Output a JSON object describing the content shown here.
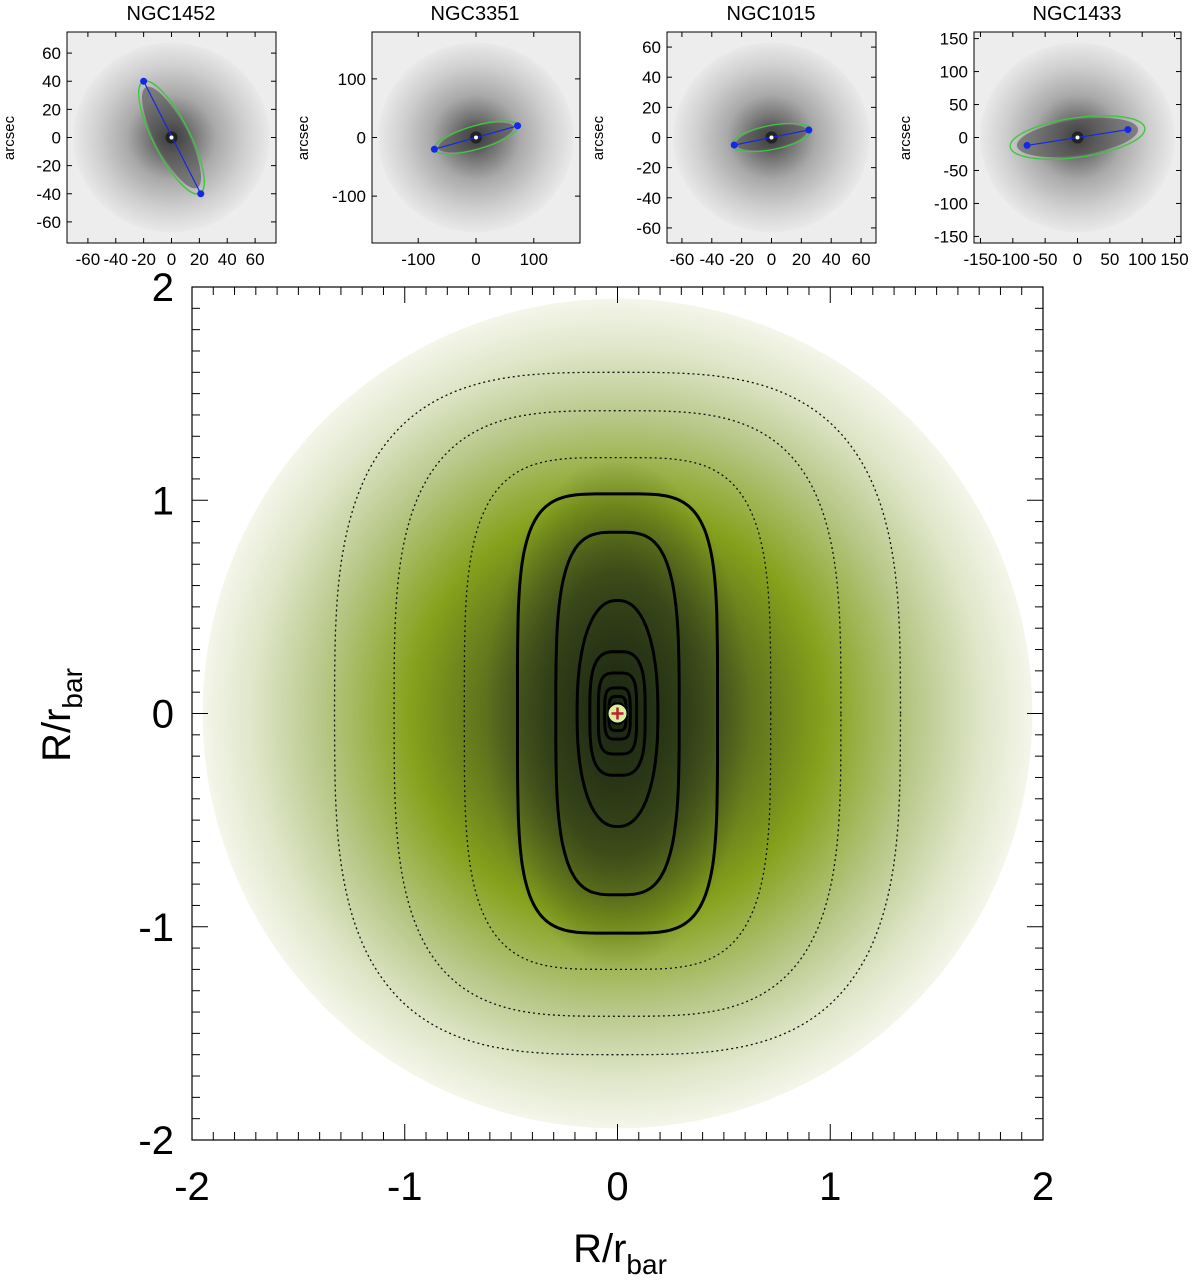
{
  "chart_data": [
    {
      "type": "heatmap",
      "panel": "top-1",
      "title": "NGC1452",
      "ylabel": "arcsec",
      "xlim": [
        -75,
        75
      ],
      "ylim": [
        -75,
        75
      ],
      "xticks": [
        -60,
        -40,
        -20,
        0,
        20,
        40,
        60
      ],
      "xtick_labels": [
        "-60",
        "-40",
        "-20",
        "0",
        "20",
        "40",
        "60"
      ],
      "yticks": [
        -60,
        -40,
        -20,
        0,
        20,
        40,
        60
      ],
      "ytick_labels": [
        "-60",
        "-40",
        "-20",
        "0",
        "20",
        "40",
        "60"
      ],
      "bar_endpoints": [
        [
          -20,
          40
        ],
        [
          21,
          -40
        ]
      ],
      "ellipse": {
        "cx": 0,
        "cy": 0,
        "semi_major": 45,
        "semi_minor": 13,
        "angle_deg": 63
      },
      "colors": {
        "bar": "#1428e6",
        "ellipse": "#3cc83c"
      }
    },
    {
      "type": "heatmap",
      "panel": "top-2",
      "title": "NGC3351",
      "ylabel": "arcsec",
      "xlim": [
        -180,
        180
      ],
      "ylim": [
        -180,
        180
      ],
      "xticks": [
        -100,
        0,
        100
      ],
      "xtick_labels": [
        "-100",
        "0",
        "100"
      ],
      "yticks": [
        -100,
        0,
        100
      ],
      "ytick_labels": [
        "-100",
        "0",
        "100"
      ],
      "bar_endpoints": [
        [
          -72,
          -20
        ],
        [
          72,
          20
        ]
      ],
      "ellipse": {
        "cx": 0,
        "cy": 0,
        "semi_major": 75,
        "semi_minor": 20,
        "angle_deg": -16
      },
      "colors": {
        "bar": "#1428e6",
        "ellipse": "#3cc83c"
      }
    },
    {
      "type": "heatmap",
      "panel": "top-3",
      "title": "NGC1015",
      "ylabel": "arcsec",
      "xlim": [
        -70,
        70
      ],
      "ylim": [
        -70,
        70
      ],
      "xticks": [
        -60,
        -40,
        -20,
        0,
        20,
        40,
        60
      ],
      "xtick_labels": [
        "-60",
        "-40",
        "-20",
        "0",
        "20",
        "40",
        "60"
      ],
      "yticks": [
        -60,
        -40,
        -20,
        0,
        20,
        40,
        60
      ],
      "ytick_labels": [
        "-60",
        "-40",
        "-20",
        "0",
        "20",
        "40",
        "60"
      ],
      "bar_endpoints": [
        [
          -25,
          -5
        ],
        [
          25,
          5
        ]
      ],
      "ellipse": {
        "cx": 0,
        "cy": 0,
        "semi_major": 27,
        "semi_minor": 8,
        "angle_deg": -11
      },
      "colors": {
        "bar": "#1428e6",
        "ellipse": "#3cc83c"
      }
    },
    {
      "type": "heatmap",
      "panel": "top-4",
      "title": "NGC1433",
      "ylabel": "arcsec",
      "xlim": [
        -160,
        160
      ],
      "ylim": [
        -160,
        160
      ],
      "xticks": [
        -150,
        -100,
        -50,
        0,
        50,
        100,
        150
      ],
      "xtick_labels": [
        "-150",
        "-100",
        "-50",
        "0",
        "50",
        "100",
        "150"
      ],
      "yticks": [
        -150,
        -100,
        -50,
        0,
        50,
        100,
        150
      ],
      "ytick_labels": [
        "-150",
        "-100",
        "-50",
        "0",
        "50",
        "100",
        "150"
      ],
      "bar_endpoints": [
        [
          -78,
          -12
        ],
        [
          78,
          12
        ]
      ],
      "ellipse": {
        "cx": 0,
        "cy": 0,
        "semi_major": 105,
        "semi_minor": 30,
        "angle_deg": -8
      },
      "colors": {
        "bar": "#1428e6",
        "ellipse": "#3cc83c"
      }
    },
    {
      "type": "heatmap",
      "panel": "main",
      "title": "",
      "xlabel": "R/r",
      "xlabel_sub": "bar",
      "ylabel": "R/r",
      "ylabel_sub": "bar",
      "xlim": [
        -2,
        2
      ],
      "ylim": [
        -2,
        2
      ],
      "xticks": [
        -2,
        -1,
        0,
        1,
        2
      ],
      "xtick_labels": [
        "-2",
        "-1",
        "0",
        "1",
        "2"
      ],
      "yticks": [
        -2,
        -1,
        0,
        1,
        2
      ],
      "ytick_labels": [
        "-2",
        "-1",
        "0",
        "1",
        "2"
      ],
      "grid": false,
      "disk_radius": 1.95,
      "colors": {
        "dark": "#1e2a14",
        "mid": "#86a11c",
        "light": "#f4f6ea"
      },
      "dotted_contours": [
        {
          "level": 1,
          "a": 1.33,
          "b": 1.6,
          "squareness": 1.6
        },
        {
          "level": 2,
          "a": 1.05,
          "b": 1.42,
          "squareness": 1.7
        },
        {
          "level": 3,
          "a": 0.72,
          "b": 1.2,
          "squareness": 1.9
        }
      ],
      "solid_contours": [
        {
          "level": 4,
          "a": 0.47,
          "b": 1.03,
          "squareness": 2.2
        },
        {
          "level": 5,
          "a": 0.29,
          "b": 0.85,
          "squareness": 1.7
        },
        {
          "level": 6,
          "a": 0.19,
          "b": 0.53,
          "squareness": 1.15
        },
        {
          "level": 7,
          "a": 0.13,
          "b": 0.29,
          "squareness": 1.6
        },
        {
          "level": 8,
          "a": 0.09,
          "b": 0.19,
          "squareness": 1.9
        },
        {
          "level": 9,
          "a": 0.06,
          "b": 0.12,
          "squareness": 2.0
        },
        {
          "level": 10,
          "a": 0.04,
          "b": 0.08,
          "squareness": 2.0
        },
        {
          "level": 11,
          "a": 0.025,
          "b": 0.045,
          "squareness": 2.0
        }
      ]
    }
  ]
}
